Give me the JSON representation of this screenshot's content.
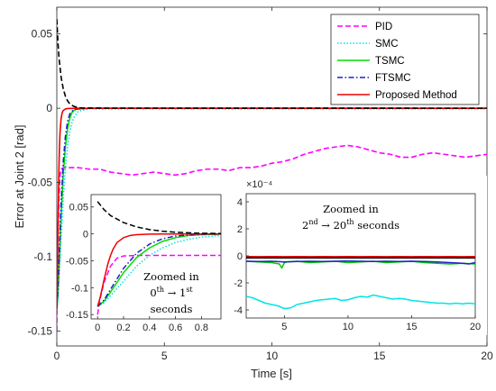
{
  "chart_data": [
    {
      "id": "main",
      "type": "line",
      "xlabel": "Time [s]",
      "ylabel": "Error at Joint 2 [rad]",
      "xlim": [
        0,
        20
      ],
      "ylim": [
        -0.16,
        0.068
      ],
      "xticks": [
        0,
        5,
        10,
        15,
        20
      ],
      "yticks": [
        0.05,
        0,
        -0.05,
        -0.1,
        -0.15
      ],
      "ytick_labels": [
        "0.05",
        "0",
        "-0.05",
        "-0.1",
        "-0.15"
      ],
      "grid": false,
      "legend_position": "top-right",
      "series": [
        {
          "name": "PID",
          "color": "#ff00ff",
          "style": "dashed",
          "x": [
            0,
            0.02,
            0.05,
            0.1,
            0.15,
            0.2,
            0.3,
            0.5,
            1,
            1.5,
            2,
            2.5,
            3,
            3.5,
            4,
            4.5,
            5,
            5.5,
            6,
            6.5,
            7,
            7.5,
            8,
            8.5,
            9,
            9.5,
            10,
            10.5,
            11,
            11.5,
            12,
            12.5,
            13,
            13.5,
            14,
            14.5,
            15,
            15.5,
            16,
            16.5,
            17,
            17.5,
            18,
            18.5,
            19,
            19.5,
            20
          ],
          "y": [
            -0.15,
            -0.12,
            -0.09,
            -0.06,
            -0.045,
            -0.041,
            -0.04,
            -0.04,
            -0.04,
            -0.041,
            -0.041,
            -0.043,
            -0.044,
            -0.045,
            -0.044,
            -0.043,
            -0.044,
            -0.045,
            -0.044,
            -0.042,
            -0.041,
            -0.041,
            -0.042,
            -0.04,
            -0.04,
            -0.039,
            -0.037,
            -0.036,
            -0.034,
            -0.031,
            -0.029,
            -0.027,
            -0.026,
            -0.025,
            -0.026,
            -0.028,
            -0.03,
            -0.031,
            -0.033,
            -0.033,
            -0.031,
            -0.03,
            -0.031,
            -0.032,
            -0.033,
            -0.032,
            -0.031
          ]
        },
        {
          "name": "SMC",
          "color": "#00e5e5",
          "style": "dotted",
          "x": [
            0,
            0.05,
            0.1,
            0.2,
            0.3,
            0.4,
            0.5,
            0.6,
            0.7,
            0.8,
            0.9,
            1.0,
            1.5,
            20
          ],
          "y": [
            -0.135,
            -0.128,
            -0.115,
            -0.088,
            -0.06,
            -0.04,
            -0.026,
            -0.016,
            -0.01,
            -0.006,
            -0.004,
            -0.002,
            -0.0004,
            -0.0004
          ]
        },
        {
          "name": "TSMC",
          "color": "#00dd00",
          "style": "solid",
          "x": [
            0,
            0.05,
            0.1,
            0.2,
            0.3,
            0.4,
            0.5,
            0.6,
            0.7,
            0.8,
            0.9,
            1.0,
            1.5,
            20
          ],
          "y": [
            -0.135,
            -0.125,
            -0.108,
            -0.072,
            -0.044,
            -0.026,
            -0.014,
            -0.007,
            -0.003,
            -0.0015,
            -0.0008,
            -0.0005,
            -4e-05,
            -4e-05
          ]
        },
        {
          "name": "FTSMC",
          "color": "#1f1fcc",
          "style": "dashdot",
          "x": [
            0,
            0.05,
            0.1,
            0.2,
            0.3,
            0.4,
            0.5,
            0.6,
            0.7,
            0.8,
            0.9,
            1.0,
            1.5,
            20
          ],
          "y": [
            -0.135,
            -0.123,
            -0.103,
            -0.064,
            -0.036,
            -0.019,
            -0.009,
            -0.004,
            -0.002,
            -0.001,
            -0.0006,
            -0.0004,
            -5e-05,
            -5e-05
          ]
        },
        {
          "name": "Proposed Method",
          "color": "#ee0000",
          "style": "solid",
          "x": [
            0,
            0.02,
            0.05,
            0.08,
            0.1,
            0.12,
            0.15,
            0.2,
            0.25,
            0.3,
            0.4,
            0.5,
            1.0,
            20
          ],
          "y": [
            -0.135,
            -0.118,
            -0.085,
            -0.055,
            -0.04,
            -0.028,
            -0.016,
            -0.007,
            -0.003,
            -0.0015,
            -0.0005,
            -0.0002,
            -2e-05,
            -2e-05
          ]
        },
        {
          "name": "",
          "color": "#000000",
          "style": "dashed",
          "x": [
            0,
            0.05,
            0.1,
            0.2,
            0.3,
            0.4,
            0.5,
            0.6,
            0.7,
            0.8,
            0.9,
            1.0,
            1.2,
            20
          ],
          "y": [
            0.06,
            0.045,
            0.034,
            0.021,
            0.013,
            0.008,
            0.005,
            0.003,
            0.002,
            0.0012,
            0.0008,
            0.0005,
            0.0001,
            0.0
          ]
        }
      ]
    },
    {
      "id": "inset-left",
      "type": "line",
      "annotation": [
        "Zoomed in",
        "0th → 1st",
        "seconds"
      ],
      "xlim": [
        -0.05,
        0.95
      ],
      "ylim": [
        -0.158,
        0.073
      ],
      "xticks": [
        0,
        0.2,
        0.4,
        0.6,
        0.8
      ],
      "xtick_labels": [
        "0",
        "0.2",
        "0.4",
        "0.6",
        "0.8"
      ],
      "yticks": [
        0.05,
        0,
        -0.05,
        -0.1,
        -0.15
      ],
      "ytick_labels": [
        "0.05",
        "0",
        "-0.05",
        "-0.1",
        "-0.15"
      ],
      "series_ref": "main"
    },
    {
      "id": "inset-right",
      "type": "line",
      "annotation": [
        "Zoomed in",
        "2nd → 20th seconds"
      ],
      "exponent_label": "×10⁻⁴",
      "xlim": [
        2,
        20
      ],
      "ylim": [
        -4.6,
        4.6
      ],
      "xticks": [
        5,
        10,
        15,
        20
      ],
      "yticks": [
        4,
        2,
        0,
        -2,
        -4
      ],
      "series": [
        {
          "name": "SMC",
          "color": "#00e5e5",
          "x": [
            2,
            2.5,
            3,
            3.5,
            4,
            4.5,
            5,
            5.5,
            6,
            6.5,
            7,
            7.5,
            8,
            8.5,
            9,
            9.5,
            10,
            10.5,
            11,
            11.5,
            12,
            12.5,
            13,
            13.5,
            14,
            14.5,
            15,
            15.5,
            16,
            16.5,
            17,
            17.5,
            18,
            18.5,
            19,
            19.5,
            20
          ],
          "y": [
            -3.0,
            -3.1,
            -3.3,
            -3.5,
            -3.6,
            -3.7,
            -3.9,
            -3.85,
            -3.6,
            -3.5,
            -3.4,
            -3.3,
            -3.25,
            -3.2,
            -3.15,
            -3.3,
            -3.25,
            -3.1,
            -3.0,
            -3.05,
            -2.9,
            -3.0,
            -3.1,
            -3.2,
            -3.15,
            -3.2,
            -3.3,
            -3.35,
            -3.4,
            -3.45,
            -3.5,
            -3.5,
            -3.55,
            -3.5,
            -3.55,
            -3.5,
            -3.55
          ]
        },
        {
          "name": "TSMC",
          "color": "#00cc00",
          "x": [
            2,
            3,
            4,
            4.6,
            4.8,
            5,
            5.2,
            6,
            7,
            8,
            9,
            10,
            11,
            12,
            13,
            14,
            15,
            16,
            17,
            18,
            19,
            20
          ],
          "y": [
            -0.4,
            -0.45,
            -0.5,
            -0.6,
            -0.9,
            -0.5,
            -0.45,
            -0.4,
            -0.5,
            -0.45,
            -0.4,
            -0.5,
            -0.45,
            -0.4,
            -0.5,
            -0.45,
            -0.4,
            -0.5,
            -0.55,
            -0.6,
            -0.55,
            -0.6
          ]
        },
        {
          "name": "FTSMC",
          "color": "#1f1fcc",
          "x": [
            2,
            3,
            4,
            5,
            6,
            7,
            8,
            9,
            10,
            11,
            12,
            13,
            14,
            15,
            16,
            17,
            18,
            19,
            19.5,
            20
          ],
          "y": [
            -0.4,
            -0.42,
            -0.4,
            -0.45,
            -0.42,
            -0.4,
            -0.42,
            -0.4,
            -0.38,
            -0.4,
            -0.42,
            -0.4,
            -0.42,
            -0.4,
            -0.42,
            -0.45,
            -0.5,
            -0.55,
            -0.6,
            -0.5
          ]
        },
        {
          "name": "Proposed Method",
          "color": "#ee0000",
          "x": [
            2,
            3,
            4,
            5,
            6,
            7,
            8,
            9,
            10,
            11,
            12,
            13,
            14,
            15,
            16,
            17,
            18,
            19,
            20
          ],
          "y": [
            -0.05,
            -0.06,
            -0.05,
            -0.06,
            -0.05,
            -0.06,
            -0.05,
            -0.06,
            -0.05,
            -0.06,
            -0.05,
            -0.06,
            -0.05,
            -0.06,
            -0.05,
            -0.06,
            -0.05,
            -0.06,
            -0.05
          ]
        },
        {
          "name": "",
          "color": "#000000",
          "x": [
            2,
            20
          ],
          "y": [
            -0.15,
            -0.15
          ]
        }
      ]
    }
  ]
}
